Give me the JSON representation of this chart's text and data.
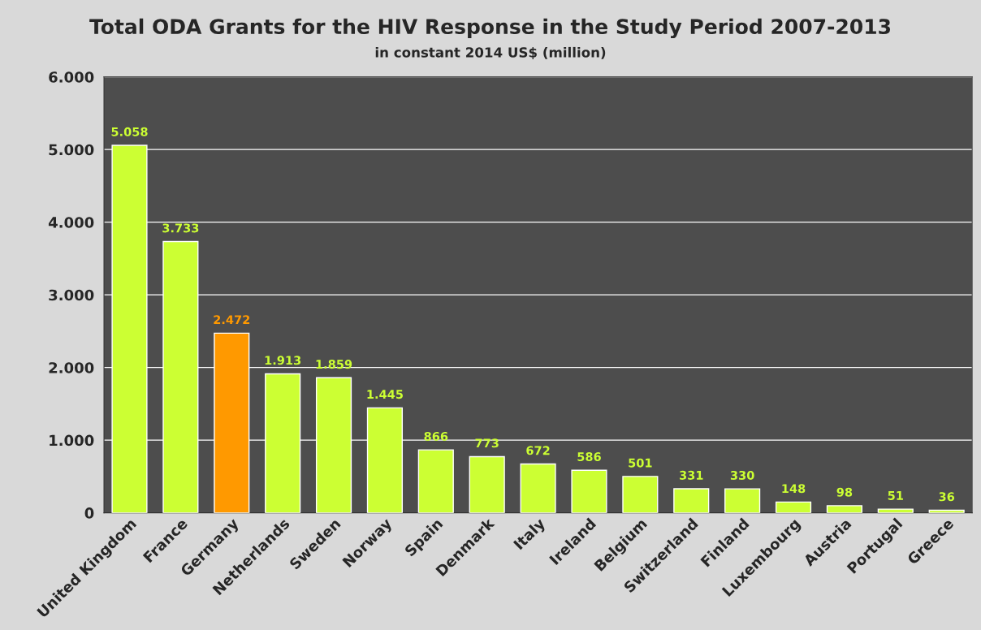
{
  "chart_data": {
    "type": "bar",
    "title": "Total ODA Grants for the HIV Response in the Study Period 2007-2013",
    "subtitle": "in constant 2014 US$ (million)",
    "categories": [
      "United Kingdom",
      "France",
      "Germany",
      "Netherlands",
      "Sweden",
      "Norway",
      "Spain",
      "Denmark",
      "Italy",
      "Ireland",
      "Belgium",
      "Switzerland",
      "Finland",
      "Luxembourg",
      "Austria",
      "Portugal",
      "Greece"
    ],
    "values": [
      5058,
      3733,
      2472,
      1913,
      1859,
      1445,
      866,
      773,
      672,
      586,
      501,
      331,
      330,
      148,
      98,
      51,
      36
    ],
    "value_labels": [
      "5.058",
      "3.733",
      "2.472",
      "1.913",
      "1.859",
      "1.445",
      "866",
      "773",
      "672",
      "586",
      "501",
      "331",
      "330",
      "148",
      "98",
      "51",
      "36"
    ],
    "colors": [
      "#ccff33",
      "#ccff33",
      "#ff9900",
      "#ccff33",
      "#ccff33",
      "#ccff33",
      "#ccff33",
      "#ccff33",
      "#ccff33",
      "#ccff33",
      "#ccff33",
      "#ccff33",
      "#ccff33",
      "#ccff33",
      "#ccff33",
      "#ccff33",
      "#ccff33"
    ],
    "ylim": [
      0,
      6000
    ],
    "yticks": [
      {
        "value": 0,
        "label": "0"
      },
      {
        "value": 1000,
        "label": "1.000"
      },
      {
        "value": 2000,
        "label": "2.000"
      },
      {
        "value": 3000,
        "label": "3.000"
      },
      {
        "value": 4000,
        "label": "4.000"
      },
      {
        "value": 5000,
        "label": "5.000"
      },
      {
        "value": 6000,
        "label": "6.000"
      }
    ],
    "grid": "y"
  }
}
